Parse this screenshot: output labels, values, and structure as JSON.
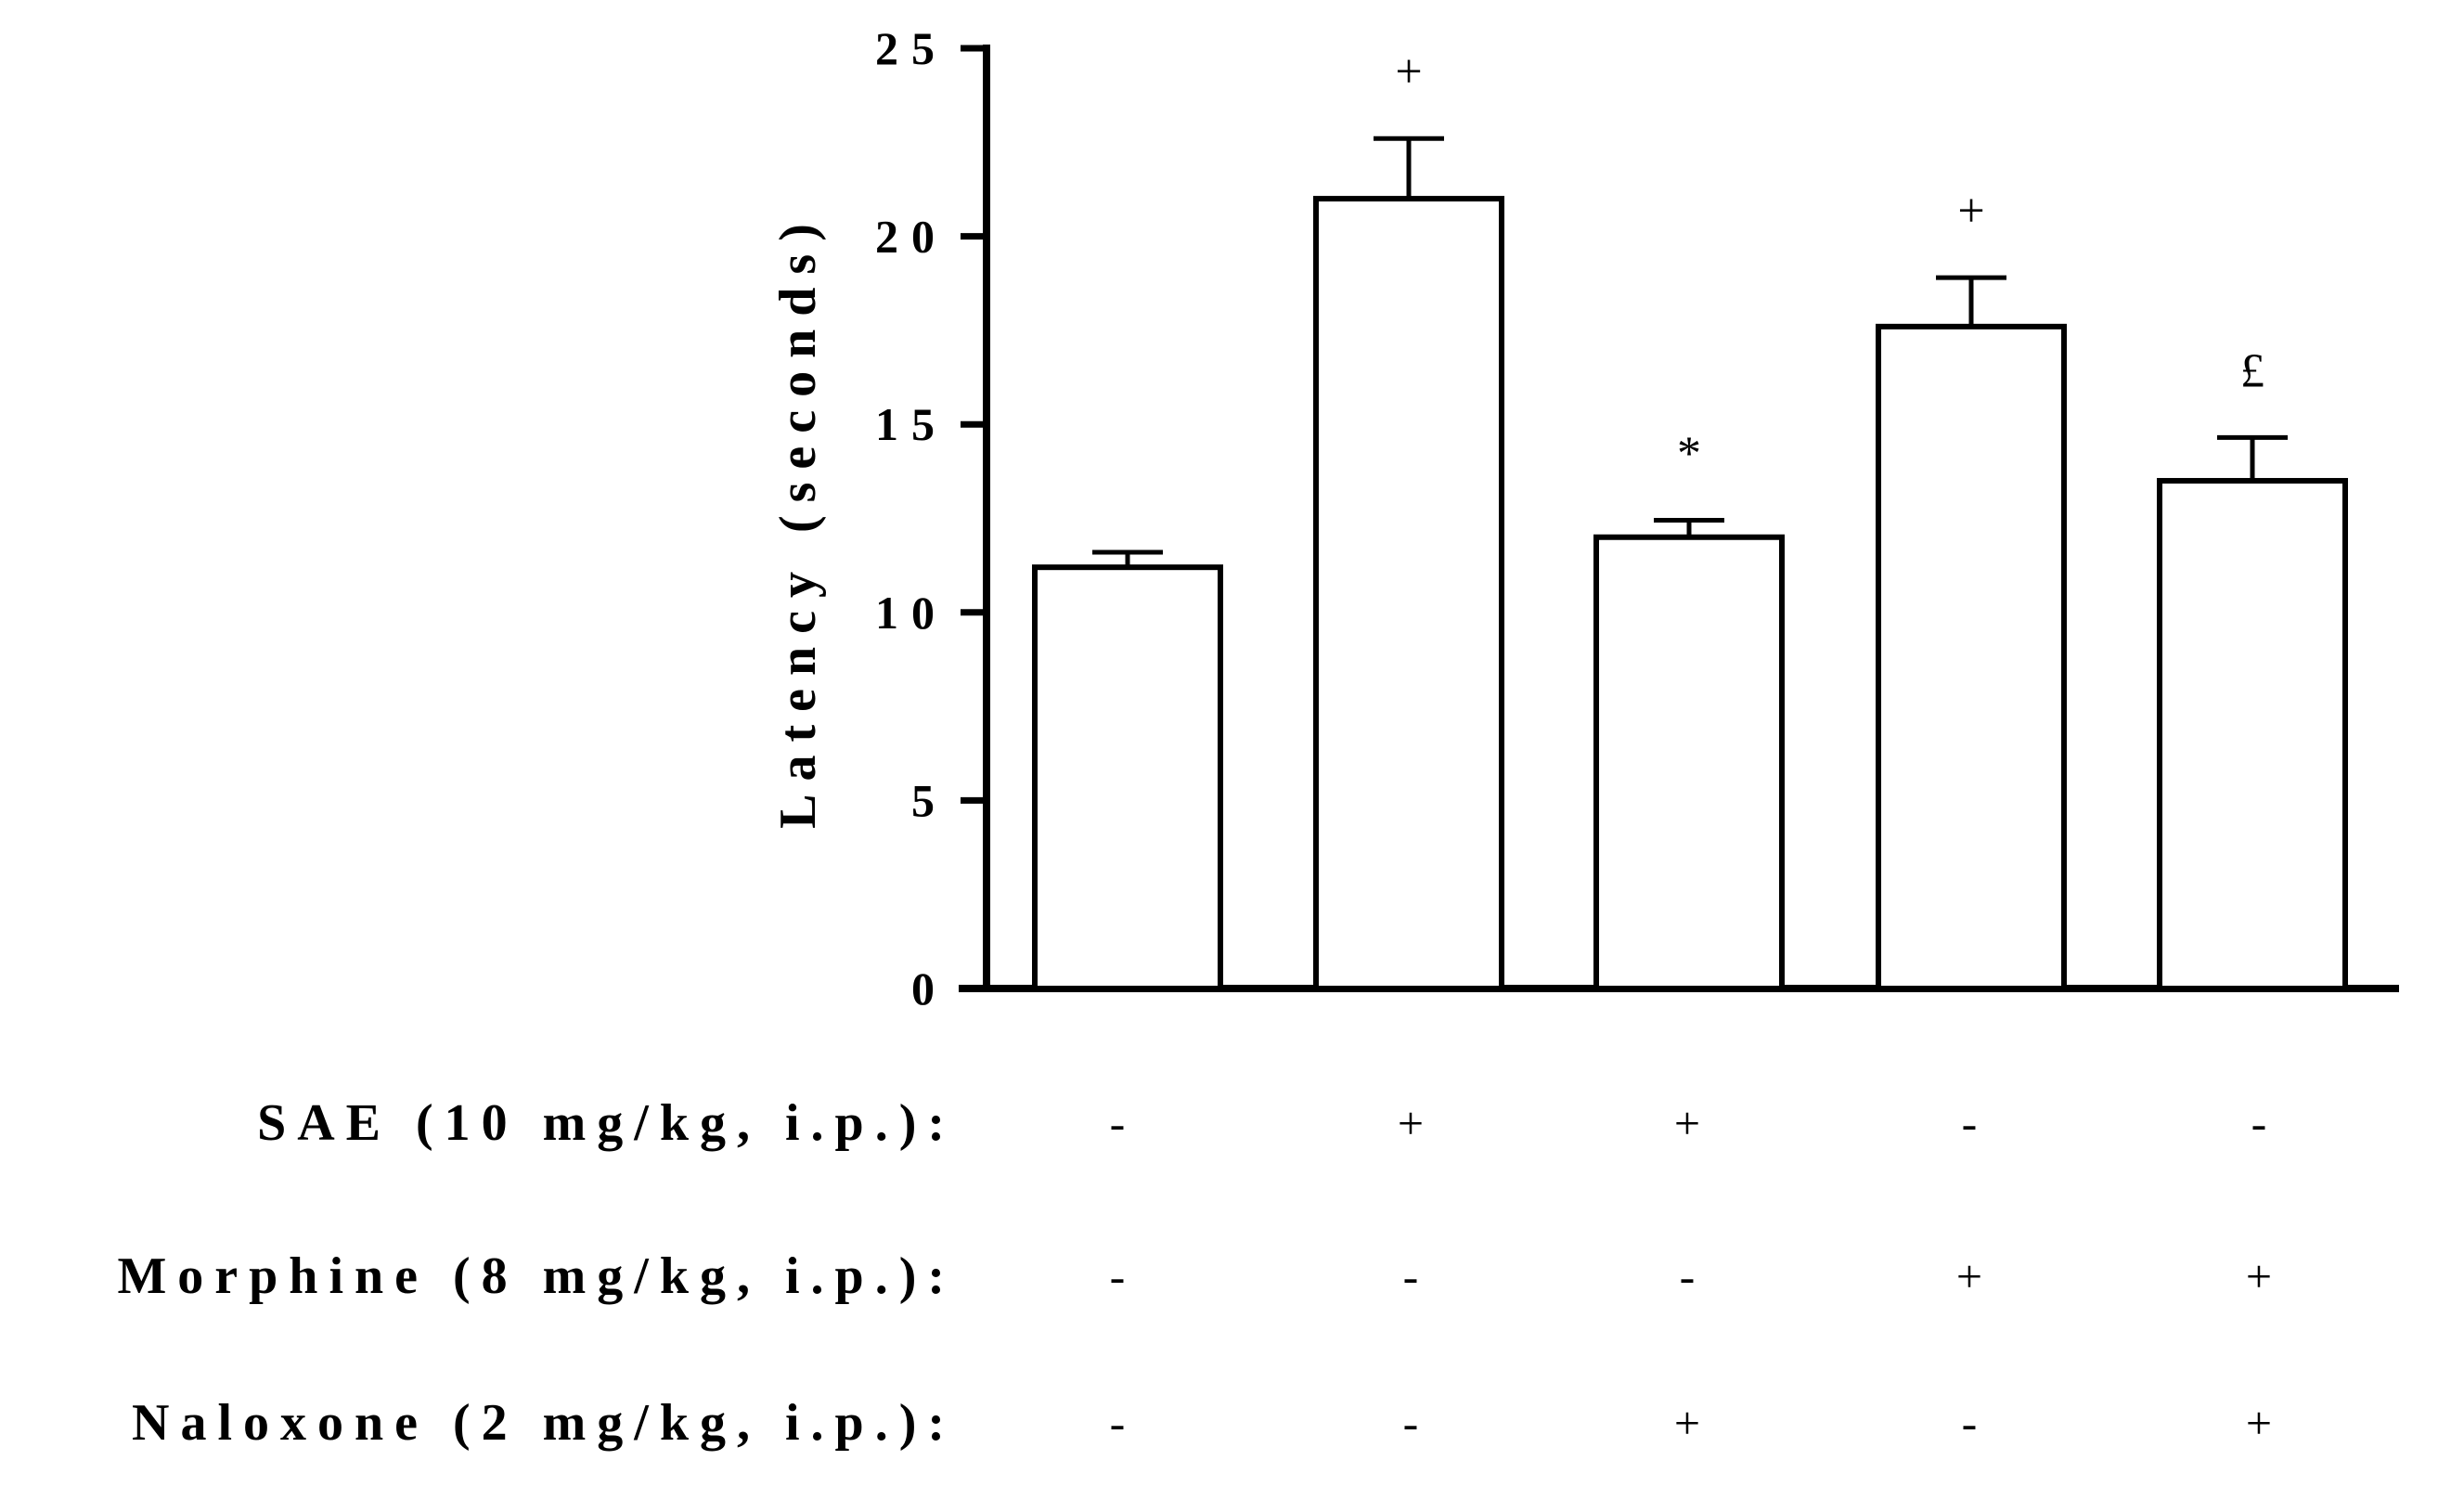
{
  "chart_data": {
    "type": "bar",
    "ylabel": "Latency (seconds)",
    "ylim": [
      0,
      25
    ],
    "yticks": [
      0,
      5,
      10,
      15,
      20,
      25
    ],
    "grid": false,
    "values": [
      11.2,
      21.0,
      12.0,
      17.6,
      13.5
    ],
    "errors": [
      0.4,
      1.6,
      0.45,
      1.3,
      1.15
    ],
    "annotations": [
      "",
      "+",
      "*",
      "+",
      "£"
    ],
    "bar_color": "#ffffff",
    "edge_color": "#000000",
    "treatments": [
      {
        "label": "SAE (10 mg/kg, i.p.):",
        "signs": [
          "-",
          "+",
          "+",
          "-",
          "-"
        ]
      },
      {
        "label": "Morphine (8 mg/kg, i.p.):",
        "signs": [
          "-",
          "-",
          "-",
          "+",
          "+"
        ]
      },
      {
        "label": "Naloxone (2 mg/kg, i.p.):",
        "signs": [
          "-",
          "-",
          "+",
          "-",
          "+"
        ]
      }
    ]
  }
}
